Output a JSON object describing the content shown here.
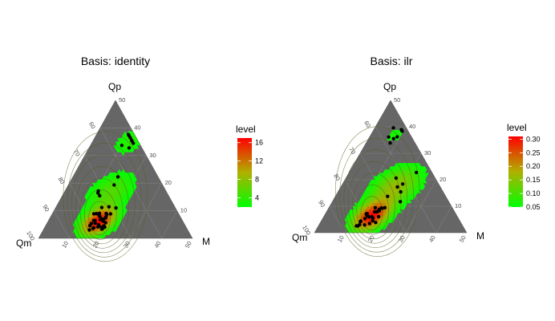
{
  "chart_data": [
    {
      "type": "ternary-density",
      "title": "Basis: identity",
      "vertices": {
        "top": "Qp",
        "left": "Qm",
        "right": "M"
      },
      "axis_ticks": {
        "Qp": [
          "10",
          "20",
          "30",
          "40",
          "50"
        ],
        "Qm": [
          "60",
          "70",
          "80",
          "90",
          "100"
        ],
        "M": [
          "10",
          "20",
          "30",
          "40",
          "50"
        ]
      },
      "legend": {
        "title": "level",
        "ticks": [
          "4",
          "8",
          "12",
          "16"
        ],
        "range": [
          2,
          17
        ]
      },
      "contour_levels": [
        2,
        4,
        6,
        8,
        10,
        12,
        14,
        16
      ],
      "points_count": 47,
      "colors": {
        "low": "#00ff00",
        "high": "#ff0000",
        "background": "#666666",
        "grid": "#808080"
      }
    },
    {
      "type": "ternary-density",
      "title": "Basis: ilr",
      "vertices": {
        "top": "Qp",
        "left": "Qm",
        "right": "M"
      },
      "axis_ticks": {
        "Qp": [
          "10",
          "20",
          "30",
          "40",
          "50"
        ],
        "Qm": [
          "60",
          "70",
          "80",
          "90",
          "100"
        ],
        "M": [
          "10",
          "20",
          "30",
          "40",
          "50"
        ]
      },
      "legend": {
        "title": "level",
        "ticks": [
          "0.05",
          "0.10",
          "0.15",
          "0.20",
          "0.25",
          "0.30"
        ],
        "range": [
          0.05,
          0.31
        ]
      },
      "contour_levels": [
        0.05,
        0.08,
        0.11,
        0.14,
        0.17,
        0.2,
        0.23,
        0.26,
        0.29
      ],
      "points_count": 42,
      "colors": {
        "low": "#00ff00",
        "high": "#ff0000",
        "background": "#666666",
        "grid": "#808080"
      }
    }
  ]
}
